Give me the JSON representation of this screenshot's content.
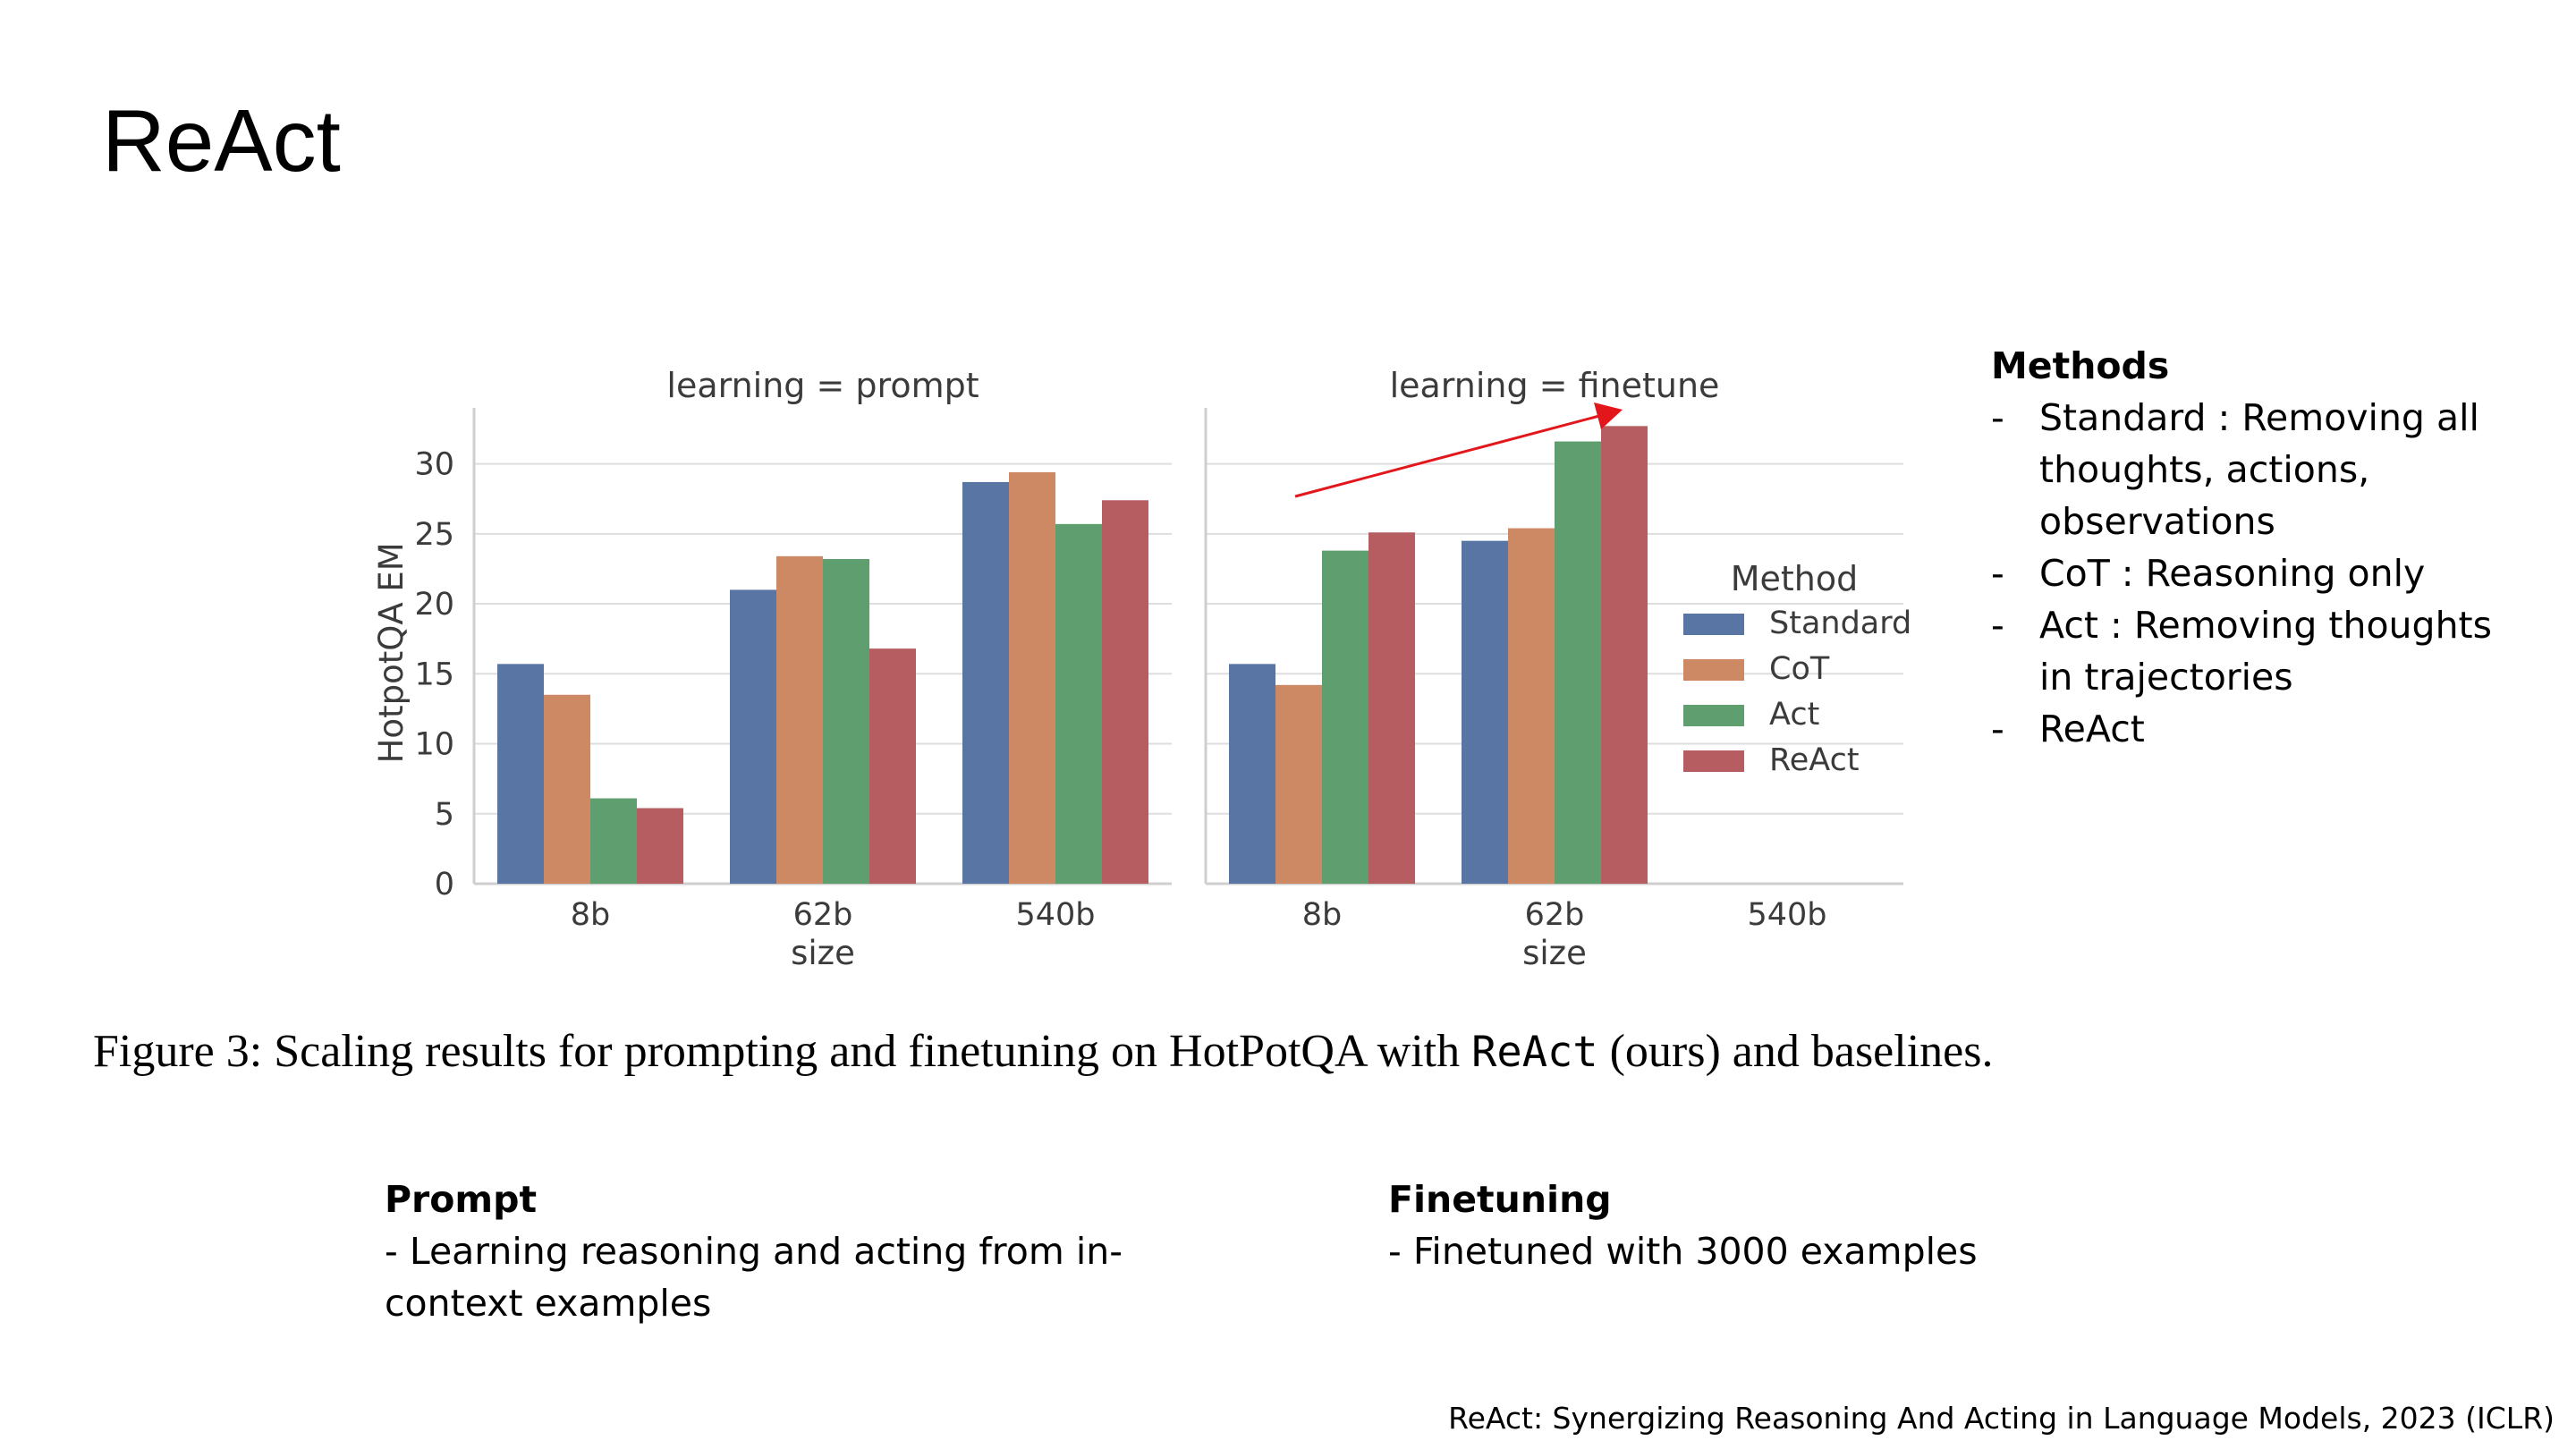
{
  "slide": {
    "title": "ReAct",
    "reference": "ReAct: Synergizing Reasoning And Acting in Language Models, 2023 (ICLR)"
  },
  "methods_panel": {
    "heading": "Methods",
    "items": [
      {
        "dash": "-",
        "text": "Standard : Removing all thoughts, actions, observations"
      },
      {
        "dash": "-",
        "text": "CoT : Reasoning only"
      },
      {
        "dash": "-",
        "text": "Act : Removing thoughts in trajectories"
      },
      {
        "dash": "-",
        "text": "ReAct"
      }
    ]
  },
  "caption": {
    "prefix": "Figure 3:  Scaling results for prompting and finetuning on HotPotQA with ",
    "mono": "ReAct",
    "suffix": " (ours) and baselines."
  },
  "prompt_col": {
    "heading": "Prompt",
    "text": "- Learning reasoning and acting from in-context examples"
  },
  "finetune_col": {
    "heading": "Finetuning",
    "text": "- Finetuned with 3000 examples"
  },
  "chart_data": {
    "type": "bar",
    "ylabel": "HotpotQA EM",
    "xlabel": "size",
    "ylim": [
      0,
      34
    ],
    "yticks": [
      0,
      5,
      10,
      15,
      20,
      25,
      30
    ],
    "grid": true,
    "categories": [
      "8b",
      "62b",
      "540b"
    ],
    "legend": {
      "title": "Method",
      "placement": "right"
    },
    "series_colors": {
      "Standard": "#5875a4",
      "CoT": "#cc8963",
      "Act": "#5f9e6e",
      "ReAct": "#b55d60"
    },
    "annotation": {
      "type": "arrow",
      "color": "#e3171b"
    },
    "panels": [
      {
        "title": "learning = prompt",
        "series": [
          {
            "name": "Standard",
            "values": [
              15.7,
              21.0,
              28.7
            ]
          },
          {
            "name": "CoT",
            "values": [
              13.5,
              23.4,
              29.4
            ]
          },
          {
            "name": "Act",
            "values": [
              6.1,
              23.2,
              25.7
            ]
          },
          {
            "name": "ReAct",
            "values": [
              5.4,
              16.8,
              27.4
            ]
          }
        ]
      },
      {
        "title": "learning = finetune",
        "series": [
          {
            "name": "Standard",
            "values": [
              15.7,
              24.5,
              null
            ]
          },
          {
            "name": "CoT",
            "values": [
              14.2,
              25.4,
              null
            ]
          },
          {
            "name": "Act",
            "values": [
              23.8,
              31.6,
              null
            ]
          },
          {
            "name": "ReAct",
            "values": [
              25.1,
              32.7,
              null
            ]
          }
        ]
      }
    ]
  }
}
